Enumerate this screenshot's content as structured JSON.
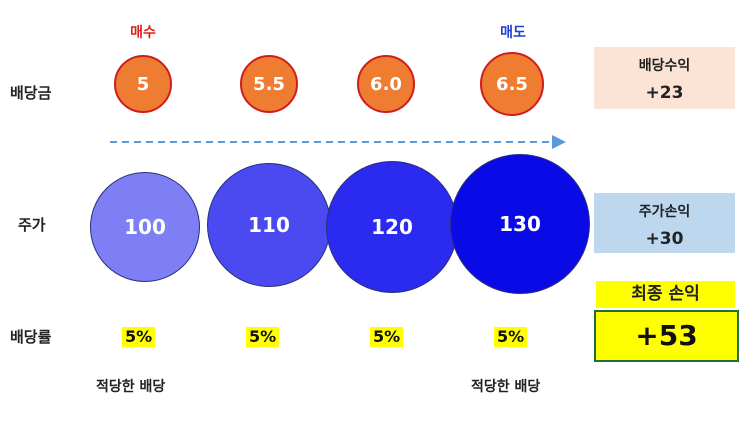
{
  "rows": {
    "dividend_label": "배당금",
    "price_label": "주가",
    "yield_label": "배당률"
  },
  "signals": {
    "buy": "매수",
    "sell": "매도",
    "buy_color": "#e02020",
    "sell_color": "#1f3fd0"
  },
  "dividends": [
    "5",
    "5.5",
    "6.0",
    "6.5"
  ],
  "prices": [
    "100",
    "110",
    "120",
    "130"
  ],
  "yields": [
    "5%",
    "5%",
    "5%",
    "5%"
  ],
  "notes": {
    "left": "적당한 배당",
    "right": "적당한 배당"
  },
  "summary": {
    "dividend_gain_title": "배당수익",
    "dividend_gain_value": "+23",
    "price_gain_title": "주가손익",
    "price_gain_value": "+30",
    "final_title": "최종 손익",
    "final_value": "+53"
  },
  "colors": {
    "dividend_fill": "#ee7d31",
    "dividend_border": "#cf1d1d",
    "price_fills": [
      "#7f7ff5",
      "#4a4af0",
      "#2a2af0",
      "#0a0ae6"
    ],
    "dividend_box": "#fbe3d6",
    "price_box": "#bdd7ee",
    "highlight": "#ffff00",
    "arrow": "#5b9bd5"
  }
}
